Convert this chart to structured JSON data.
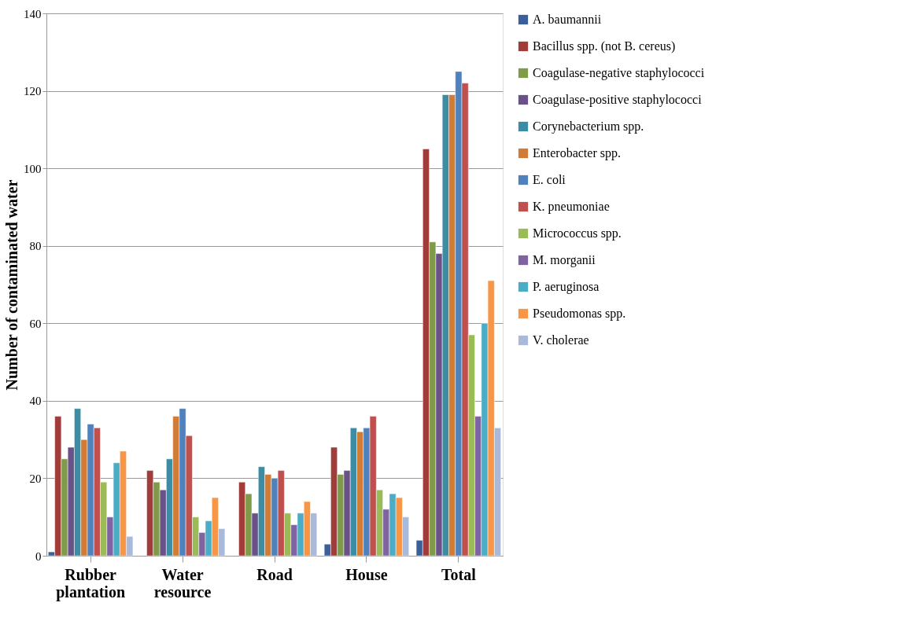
{
  "chart_data": {
    "type": "bar",
    "ylabel": "Number of contaminated water",
    "categories": [
      "Rubber plantation",
      "Water resource",
      "Road",
      "House",
      "Total"
    ],
    "ylim": [
      0,
      140
    ],
    "yticks": [
      0,
      20,
      40,
      60,
      80,
      100,
      120,
      140
    ],
    "grid": "y",
    "legend": "right",
    "series": [
      {
        "name": "A. baumannii",
        "color": "#3d5f99",
        "values": [
          1,
          null,
          null,
          3,
          4
        ]
      },
      {
        "name": "Bacillus spp. (not B. cereus)",
        "color": "#a03c3a",
        "values": [
          36,
          22,
          19,
          28,
          105
        ]
      },
      {
        "name": "Coagulase-negative staphylococci",
        "color": "#7f9a48",
        "values": [
          25,
          19,
          16,
          21,
          81
        ]
      },
      {
        "name": "Coagulase-positive staphylococci",
        "color": "#6a5288",
        "values": [
          28,
          17,
          11,
          22,
          78
        ]
      },
      {
        "name": "Corynebacterium spp.",
        "color": "#3c8da3",
        "values": [
          38,
          25,
          23,
          33,
          119
        ]
      },
      {
        "name": "Enterobacter spp.",
        "color": "#d07b36",
        "values": [
          30,
          36,
          21,
          32,
          119
        ]
      },
      {
        "name": "E. coli",
        "color": "#4f81bd",
        "values": [
          34,
          38,
          20,
          33,
          125
        ]
      },
      {
        "name": "K. pneumoniae",
        "color": "#c0504d",
        "values": [
          33,
          31,
          22,
          36,
          122
        ]
      },
      {
        "name": "Micrococcus spp.",
        "color": "#9bbb59",
        "values": [
          19,
          10,
          11,
          17,
          57
        ]
      },
      {
        "name": "M. morganii",
        "color": "#8064a2",
        "values": [
          10,
          6,
          8,
          12,
          36
        ]
      },
      {
        "name": "P. aeruginosa",
        "color": "#4bacc6",
        "values": [
          24,
          9,
          11,
          16,
          60
        ]
      },
      {
        "name": "Pseudomonas spp.",
        "color": "#f79646",
        "values": [
          27,
          15,
          14,
          15,
          71
        ]
      },
      {
        "name": "V. cholerae",
        "color": "#a9b9d9",
        "values": [
          5,
          7,
          11,
          10,
          33
        ]
      }
    ]
  }
}
